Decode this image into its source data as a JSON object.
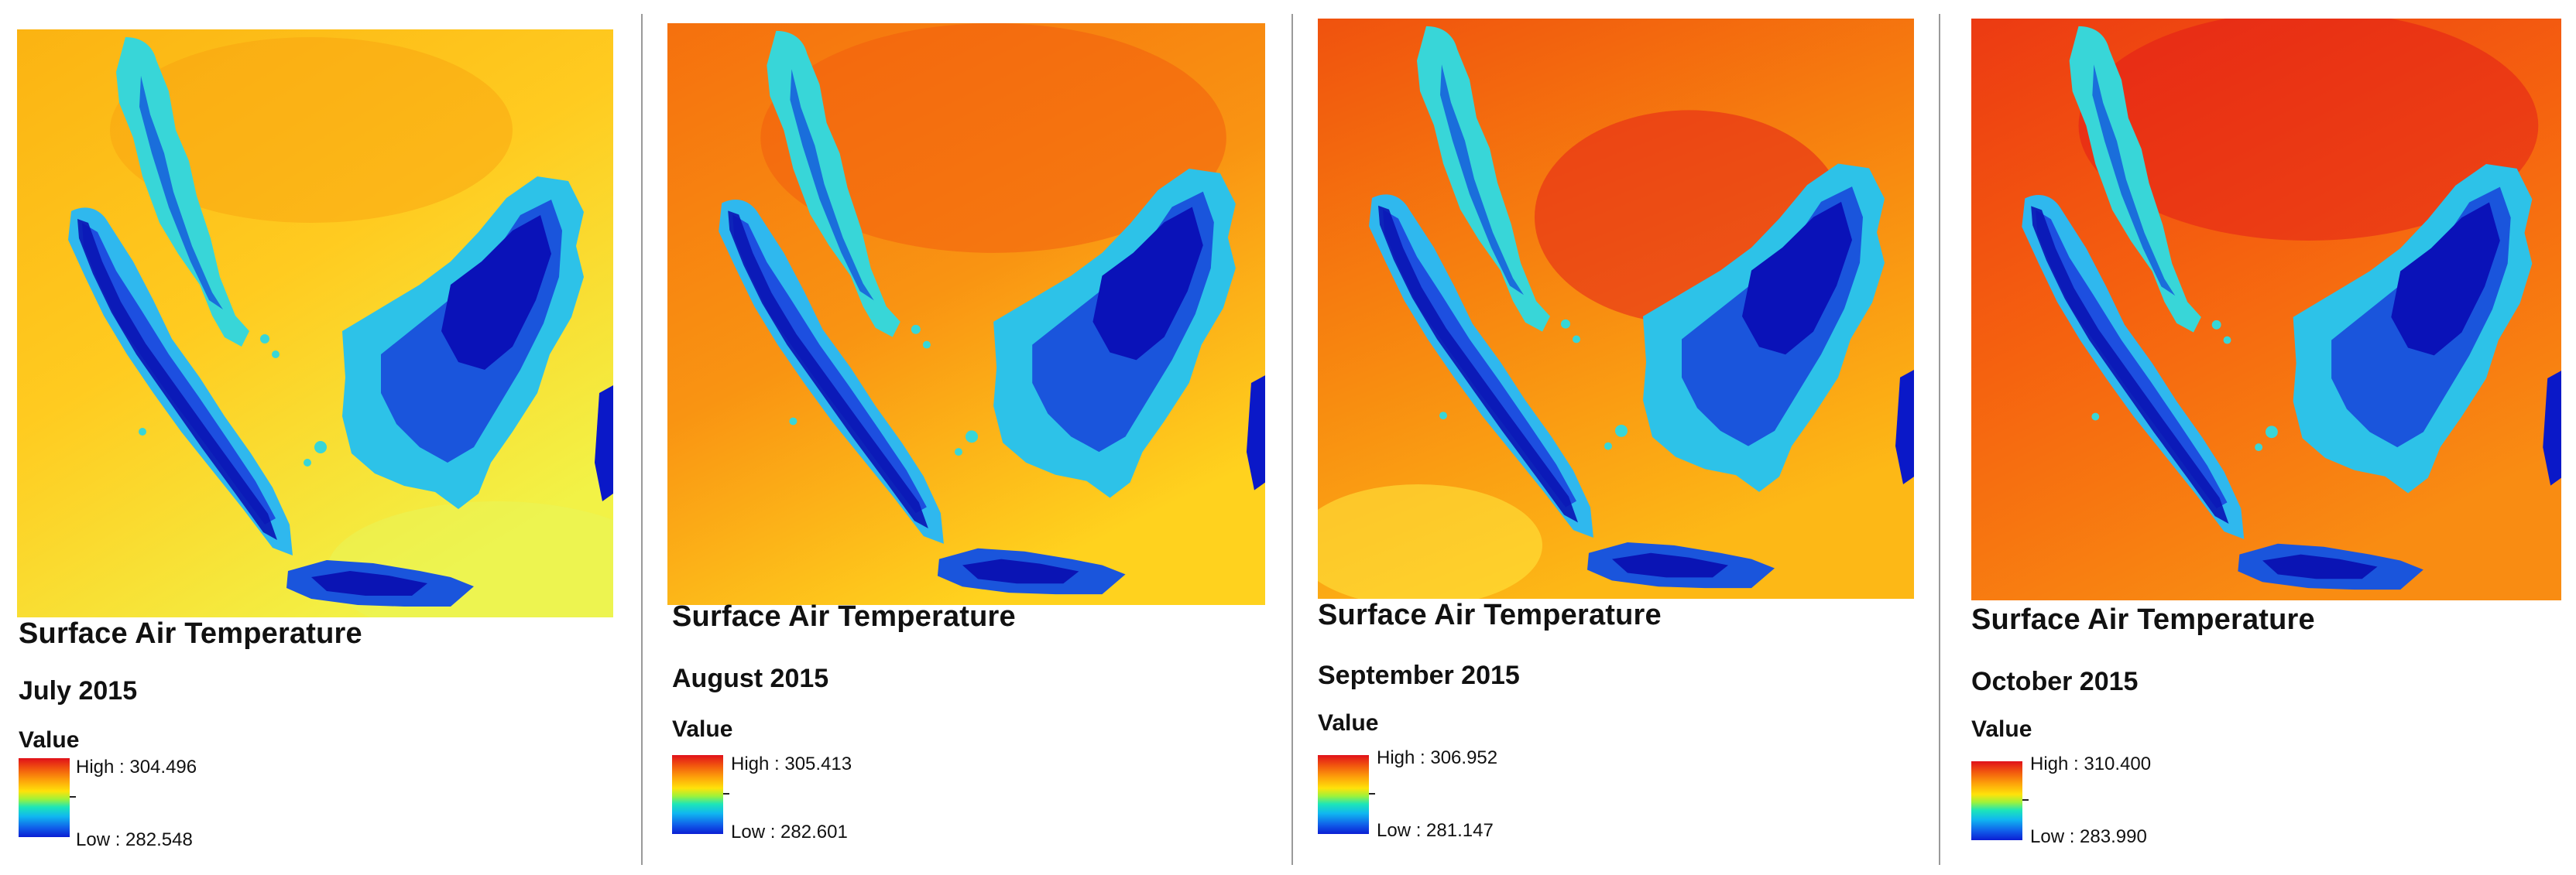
{
  "panels": [
    {
      "title": "Surface Air Temperature",
      "period": "July 2015",
      "value_label": "Value",
      "high": "High : 304.496",
      "low": "Low : 282.548"
    },
    {
      "title": "Surface Air Temperature",
      "period": "August 2015",
      "value_label": "Value",
      "high": "High : 305.413",
      "low": "Low : 282.601"
    },
    {
      "title": "Surface Air Temperature",
      "period": "September 2015",
      "value_label": "Value",
      "high": "High : 306.952",
      "low": "Low : 281.147"
    },
    {
      "title": "Surface Air Temperature",
      "period": "October 2015",
      "value_label": "Value",
      "high": "High : 310.400",
      "low": "Low : 283.990"
    }
  ],
  "colors": {
    "ramp_high": "#e0101a",
    "ramp_mid": "#ffe20a",
    "ramp_low": "#0b1ed3",
    "separator": "#9a9a9a"
  }
}
